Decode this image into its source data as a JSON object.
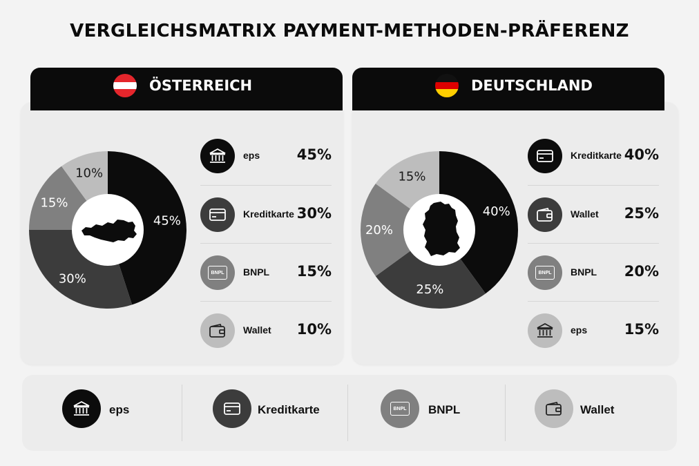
{
  "title": "VERGLEICHSMATRIX PAYMENT-METHODEN-PRÄFERENZ",
  "chart_data": [
    {
      "type": "pie",
      "title": "ÖSTERREICH",
      "categories": [
        "eps",
        "Kreditkarte",
        "BNPL",
        "Wallet"
      ],
      "values": [
        45,
        30,
        15,
        10
      ],
      "colors": [
        "#0c0c0c",
        "#3c3c3c",
        "#808080",
        "#bdbdbd"
      ],
      "center_icon": "austria-map-icon",
      "legend_placement": "right"
    },
    {
      "type": "pie",
      "title": "DEUTSCHLAND",
      "categories": [
        "Kreditkarte",
        "Wallet",
        "BNPL",
        "eps"
      ],
      "values": [
        40,
        25,
        20,
        15
      ],
      "colors": [
        "#0c0c0c",
        "#3c3c3c",
        "#808080",
        "#bdbdbd"
      ],
      "center_icon": "germany-map-icon",
      "legend_placement": "right"
    }
  ],
  "panels": {
    "at": {
      "name": "ÖSTERREICH",
      "flag_colors": [
        "#e4262c",
        "#ffffff",
        "#e4262c"
      ],
      "legend": [
        {
          "label": "eps",
          "pct": "45%",
          "icon": "bank-icon",
          "bg": "#0c0c0c",
          "fg": "#ffffff"
        },
        {
          "label": "Kreditkarte",
          "pct": "30%",
          "icon": "credit-card-icon",
          "bg": "#3c3c3c",
          "fg": "#ffffff"
        },
        {
          "label": "BNPL",
          "pct": "15%",
          "icon": "bnpl-icon",
          "bg": "#808080",
          "fg": "#ffffff"
        },
        {
          "label": "Wallet",
          "pct": "10%",
          "icon": "wallet-icon",
          "bg": "#bdbdbd",
          "fg": "#222222"
        }
      ]
    },
    "de": {
      "name": "DEUTSCHLAND",
      "flag_colors": [
        "#111111",
        "#dd0000",
        "#ffce00"
      ],
      "legend": [
        {
          "label": "Kreditkarte",
          "pct": "40%",
          "icon": "credit-card-icon",
          "bg": "#0c0c0c",
          "fg": "#ffffff"
        },
        {
          "label": "Wallet",
          "pct": "25%",
          "icon": "wallet-icon",
          "bg": "#3c3c3c",
          "fg": "#ffffff"
        },
        {
          "label": "BNPL",
          "pct": "20%",
          "icon": "bnpl-icon",
          "bg": "#808080",
          "fg": "#ffffff"
        },
        {
          "label": "eps",
          "pct": "15%",
          "icon": "bank-icon",
          "bg": "#bdbdbd",
          "fg": "#222222"
        }
      ]
    }
  },
  "bottom_legend": [
    {
      "label": "eps",
      "icon": "bank-icon",
      "bg": "#0c0c0c",
      "fg": "#ffffff"
    },
    {
      "label": "Kreditkarte",
      "icon": "credit-card-icon",
      "bg": "#3c3c3c",
      "fg": "#ffffff"
    },
    {
      "label": "BNPL",
      "icon": "bnpl-icon",
      "bg": "#808080",
      "fg": "#ffffff"
    },
    {
      "label": "Wallet",
      "icon": "wallet-icon",
      "bg": "#bdbdbd",
      "fg": "#222222"
    }
  ]
}
